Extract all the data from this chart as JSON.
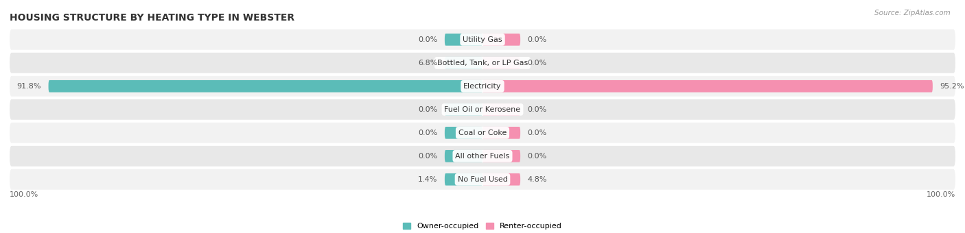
{
  "title": "HOUSING STRUCTURE BY HEATING TYPE IN WEBSTER",
  "source": "Source: ZipAtlas.com",
  "categories": [
    "Utility Gas",
    "Bottled, Tank, or LP Gas",
    "Electricity",
    "Fuel Oil or Kerosene",
    "Coal or Coke",
    "All other Fuels",
    "No Fuel Used"
  ],
  "owner_values": [
    0.0,
    6.8,
    91.8,
    0.0,
    0.0,
    0.0,
    1.4
  ],
  "renter_values": [
    0.0,
    0.0,
    95.2,
    0.0,
    0.0,
    0.0,
    4.8
  ],
  "owner_color": "#5bbcb8",
  "renter_color": "#f590b0",
  "row_bg_colors": [
    "#f2f2f2",
    "#e8e8e8"
  ],
  "title_fontsize": 10,
  "source_fontsize": 7.5,
  "bar_label_fontsize": 8,
  "category_fontsize": 8,
  "legend_fontsize": 8,
  "xlim_left": -100,
  "xlim_right": 100,
  "min_bar_width": 8,
  "x_left_label": "100.0%",
  "x_right_label": "100.0%"
}
